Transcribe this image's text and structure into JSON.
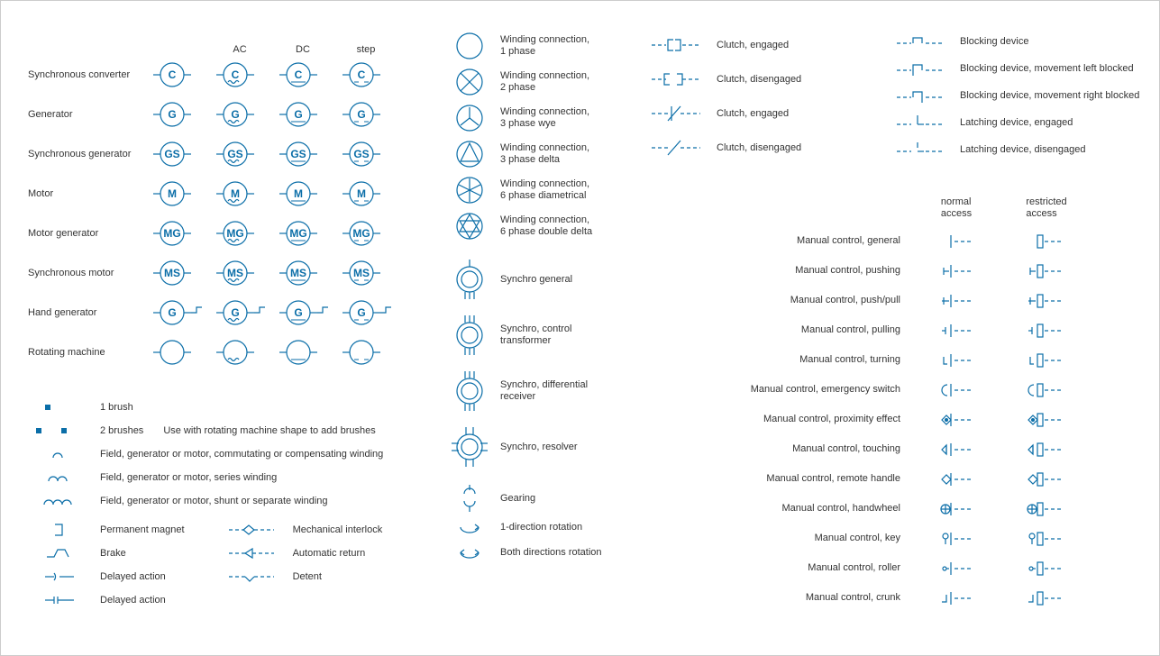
{
  "colors": {
    "line": "#0b6ea8",
    "text": "#333333",
    "bg": "#ffffff"
  },
  "columns": [
    "",
    "AC",
    "DC",
    "step"
  ],
  "machines": [
    {
      "label": "Synchronous converter",
      "letters": "C"
    },
    {
      "label": "Generator",
      "letters": "G"
    },
    {
      "label": "Synchronous generator",
      "letters": "GS"
    },
    {
      "label": "Motor",
      "letters": "M"
    },
    {
      "label": "Motor generator",
      "letters": "MG"
    },
    {
      "label": "Synchronous motor",
      "letters": "MS"
    },
    {
      "label": "Hand generator",
      "letters": "G",
      "hand": true
    },
    {
      "label": "Rotating machine",
      "letters": ""
    }
  ],
  "brushes1": "1 brush",
  "brushes2": "2 brushes",
  "brushes2_note": "Use with rotating machine shape to add brushes",
  "fields": [
    "Field, generator or motor, commutating or compensating winding",
    "Field, generator or motor, series winding",
    "Field, generator or motor, shunt or separate winding"
  ],
  "extrasL": [
    {
      "k": "pm",
      "t": "Permanent magnet"
    },
    {
      "k": "brake",
      "t": "Brake"
    },
    {
      "k": "delay1",
      "t": "Delayed action"
    },
    {
      "k": "delay2",
      "t": "Delayed action"
    }
  ],
  "extrasR": [
    {
      "k": "mech",
      "t": "Mechanical interlock"
    },
    {
      "k": "auto",
      "t": "Automatic return"
    },
    {
      "k": "detent",
      "t": "Detent"
    }
  ],
  "windings": [
    "Winding connection,\n1 phase",
    "Winding connection,\n2 phase",
    "Winding connection,\n3 phase wye",
    "Winding connection,\n3 phase delta",
    "Winding connection,\n6 phase diametrical",
    "Winding connection,\n6 phase double delta"
  ],
  "synchros": [
    "Synchro general",
    "Synchro, control\ntransformer",
    "Synchro, differential\nreceiver",
    "Synchro, resolver"
  ],
  "gearing": "Gearing",
  "rot1": "1-direction rotation",
  "rot2": "Both directions rotation",
  "clutches": [
    "Clutch, engaged",
    "Clutch, disengaged",
    "Clutch, engaged",
    "Clutch, disengaged"
  ],
  "blockings": [
    "Blocking device",
    "Blocking device, movement left blocked",
    "Blocking device, movement right blocked",
    "Latching device, engaged",
    "Latching device, disengaged"
  ],
  "manual_hdr": [
    "normal\naccess",
    "restricted\naccess"
  ],
  "manual": [
    "Manual control, general",
    "Manual control, pushing",
    "Manual control, push/pull",
    "Manual control, pulling",
    "Manual control, turning",
    "Manual control, emergency switch",
    "Manual control, proximity effect",
    "Manual control, touching",
    "Manual control, remote handle",
    "Manual control, handwheel",
    "Manual control, key",
    "Manual control, roller",
    "Manual control, crunk"
  ]
}
